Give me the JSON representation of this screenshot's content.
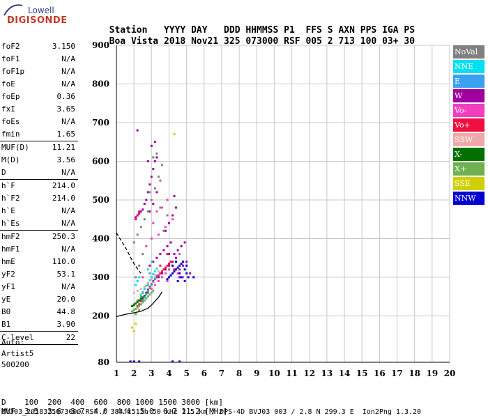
{
  "logo": {
    "line1": "Lowell",
    "line2": "DIGISONDE"
  },
  "header": {
    "labels": [
      "Station",
      "YYYY",
      "DAY",
      "DDD",
      "HHMMSS",
      "P1",
      "FFS",
      "S",
      "AXN",
      "PPS",
      "IGA",
      "PS"
    ],
    "values": [
      "Boa Vista",
      "2018",
      "Nov21",
      "325",
      "073000",
      "RSF",
      "005",
      "2",
      "713",
      "100",
      "03+",
      "30"
    ]
  },
  "parameters": [
    {
      "name": "foF2",
      "value": "3.150"
    },
    {
      "name": "foF1",
      "value": "N/A"
    },
    {
      "name": "foF1p",
      "value": "N/A"
    },
    {
      "name": "foE",
      "value": "N/A"
    },
    {
      "name": "foEp",
      "value": "0.36"
    },
    {
      "name": "fxI",
      "value": "3.65"
    },
    {
      "name": "foEs",
      "value": "N/A"
    },
    {
      "name": "fmin",
      "value": "1.65"
    },
    {
      "sep": true
    },
    {
      "name": "MUF(D)",
      "value": "11.21"
    },
    {
      "name": "M(D)",
      "value": "3.56"
    },
    {
      "name": "D",
      "value": "N/A"
    },
    {
      "sep": true
    },
    {
      "name": "h`F",
      "value": "214.0"
    },
    {
      "name": "h`F2",
      "value": "214.0"
    },
    {
      "name": "h`E",
      "value": "N/A"
    },
    {
      "name": "h`Es",
      "value": "N/A"
    },
    {
      "sep": true
    },
    {
      "name": "hmF2",
      "value": "250.3"
    },
    {
      "name": "hmF1",
      "value": "N/A"
    },
    {
      "name": "hmE",
      "value": "110.0"
    },
    {
      "name": "yF2",
      "value": "53.1"
    },
    {
      "name": "yF1",
      "value": "N/A"
    },
    {
      "name": "yE",
      "value": "20.0"
    },
    {
      "name": "B0",
      "value": "44.8"
    },
    {
      "name": "B1",
      "value": "3.90"
    },
    {
      "sep": true
    },
    {
      "name": "C-level",
      "value": "22"
    },
    {
      "sep": true
    }
  ],
  "autoscaling": {
    "line1": "Auto:",
    "line2": "Artist5",
    "line3": "500200"
  },
  "legend": [
    {
      "label": "NoVal",
      "color": "#808080"
    },
    {
      "label": "NNE",
      "color": "#00e0f0"
    },
    {
      "label": "E",
      "color": "#3aa0f0"
    },
    {
      "label": "W",
      "color": "#a000a0"
    },
    {
      "label": "Vo-",
      "color": "#f040c0"
    },
    {
      "label": "Vo+",
      "color": "#f01040"
    },
    {
      "label": "SSW",
      "color": "#f0a8a8"
    },
    {
      "label": "X-",
      "color": "#007000"
    },
    {
      "label": "X+",
      "color": "#70b050"
    },
    {
      "label": "SSE",
      "color": "#d0d000"
    },
    {
      "label": "NNW",
      "color": "#0000d0"
    }
  ],
  "distance_table": {
    "d_label": "D",
    "d_values": [
      "100",
      "200",
      "400",
      "600",
      "800",
      "1000",
      "1500",
      "3000"
    ],
    "d_unit": "[km]",
    "muf_label": "MUF",
    "muf_values": [
      "3.5",
      "3.6",
      "3.7",
      "4.0",
      "4.4",
      "5.0",
      "6.7",
      "11.2"
    ],
    "muf_unit": "[MHz]"
  },
  "footer": "BVJ03_2018325073000.RSF / 384fx512h 50 kHz 2.5 km / DPS-4D BVJ03 003 / 2.8 N 299.3 E  Ion2Png 1.3.20",
  "chart_data": {
    "type": "scatter",
    "xlim": [
      1,
      20
    ],
    "ylim": [
      80,
      900
    ],
    "xticks": [
      1,
      2,
      3,
      4,
      5,
      6,
      7,
      8,
      9,
      10,
      11,
      12,
      13,
      14,
      15,
      16,
      17,
      18,
      19,
      20
    ],
    "yticks": [
      80,
      200,
      300,
      400,
      500,
      600,
      700,
      800,
      900
    ],
    "grid": true,
    "legend_position": "right",
    "series": [
      {
        "name": "W",
        "color": "#a000a0",
        "points": [
          [
            2.1,
            455
          ],
          [
            2.2,
            460
          ],
          [
            2.3,
            465
          ],
          [
            2.4,
            470
          ],
          [
            2.5,
            475
          ],
          [
            2.6,
            490
          ],
          [
            2.7,
            500
          ],
          [
            2.8,
            520
          ],
          [
            2.9,
            540
          ],
          [
            3.0,
            560
          ],
          [
            3.1,
            580
          ],
          [
            3.2,
            600
          ],
          [
            3.3,
            610
          ],
          [
            2.8,
            600
          ],
          [
            3.0,
            640
          ],
          [
            3.2,
            650
          ],
          [
            2.9,
            470
          ],
          [
            3.1,
            490
          ],
          [
            3.3,
            520
          ],
          [
            2.9,
            330
          ],
          [
            3.1,
            340
          ],
          [
            3.3,
            350
          ],
          [
            3.5,
            360
          ],
          [
            3.7,
            370
          ],
          [
            3.9,
            380
          ],
          [
            4.1,
            390
          ],
          [
            4.3,
            360
          ],
          [
            4.5,
            370
          ],
          [
            4.7,
            380
          ],
          [
            4.9,
            390
          ],
          [
            3.4,
            300
          ],
          [
            3.6,
            310
          ],
          [
            3.8,
            320
          ],
          [
            4.0,
            330
          ],
          [
            4.2,
            340
          ],
          [
            4.4,
            350
          ],
          [
            4.6,
            320
          ],
          [
            4.8,
            330
          ],
          [
            5.0,
            340
          ],
          [
            5.2,
            310
          ],
          [
            3.8,
            420
          ],
          [
            4.0,
            440
          ],
          [
            4.2,
            460
          ],
          [
            4.4,
            480
          ],
          [
            4.3,
            510
          ],
          [
            4.0,
            360
          ],
          [
            4.6,
            300
          ],
          [
            2.2,
            680
          ]
        ]
      },
      {
        "name": "Vo-",
        "color": "#f040c0",
        "points": [
          [
            2.6,
            250
          ],
          [
            2.8,
            260
          ],
          [
            3.0,
            270
          ],
          [
            3.2,
            280
          ],
          [
            3.4,
            290
          ],
          [
            3.6,
            300
          ],
          [
            3.8,
            310
          ],
          [
            4.0,
            320
          ],
          [
            4.2,
            330
          ],
          [
            4.4,
            340
          ],
          [
            2.7,
            380
          ],
          [
            3.0,
            400
          ],
          [
            3.4,
            410
          ],
          [
            3.8,
            430
          ],
          [
            4.2,
            450
          ],
          [
            3.9,
            500
          ],
          [
            3.5,
            550
          ],
          [
            3.3,
            470
          ],
          [
            4.6,
            360
          ],
          [
            4.8,
            300
          ],
          [
            3.1,
            440
          ],
          [
            3.6,
            480
          ],
          [
            2.5,
            300
          ],
          [
            3.9,
            290
          ],
          [
            4.5,
            310
          ]
        ]
      },
      {
        "name": "Vo+",
        "color": "#f01040",
        "points": [
          [
            2.2,
            225
          ],
          [
            2.3,
            230
          ],
          [
            2.4,
            238
          ],
          [
            2.5,
            245
          ],
          [
            2.6,
            252
          ],
          [
            2.7,
            260
          ],
          [
            2.8,
            268
          ],
          [
            2.9,
            275
          ],
          [
            3.0,
            282
          ],
          [
            3.1,
            290
          ],
          [
            3.2,
            295
          ],
          [
            3.3,
            300
          ],
          [
            3.4,
            305
          ],
          [
            3.5,
            310
          ],
          [
            3.6,
            315
          ],
          [
            3.7,
            320
          ],
          [
            3.8,
            325
          ],
          [
            3.9,
            330
          ],
          [
            4.0,
            335
          ],
          [
            4.1,
            340
          ],
          [
            2.1,
            450
          ],
          [
            2.2,
            460
          ],
          [
            2.3,
            470
          ],
          [
            3.5,
            330
          ],
          [
            3.9,
            360
          ],
          [
            4.3,
            320
          ],
          [
            2.5,
            260
          ],
          [
            3.0,
            300
          ]
        ]
      },
      {
        "name": "NNW",
        "color": "#0000d0",
        "points": [
          [
            3.9,
            295
          ],
          [
            4.0,
            300
          ],
          [
            4.1,
            305
          ],
          [
            4.2,
            310
          ],
          [
            4.3,
            315
          ],
          [
            4.4,
            320
          ],
          [
            4.5,
            325
          ],
          [
            4.6,
            330
          ],
          [
            4.7,
            335
          ],
          [
            4.8,
            340
          ],
          [
            4.9,
            320
          ],
          [
            5.0,
            310
          ],
          [
            5.1,
            300
          ],
          [
            4.5,
            290
          ],
          [
            4.7,
            300
          ],
          [
            4.9,
            290
          ],
          [
            5.0,
            330
          ],
          [
            4.4,
            340
          ],
          [
            4.2,
            330
          ],
          [
            4.6,
            310
          ],
          [
            1.8,
            82
          ],
          [
            2.0,
            82
          ],
          [
            2.3,
            82
          ],
          [
            4.2,
            82
          ],
          [
            4.6,
            82
          ],
          [
            5.4,
            300
          ]
        ]
      },
      {
        "name": "X+",
        "color": "#70b050",
        "points": [
          [
            1.9,
            212
          ],
          [
            2.0,
            215
          ],
          [
            2.1,
            218
          ],
          [
            2.2,
            222
          ],
          [
            2.3,
            226
          ],
          [
            2.4,
            230
          ],
          [
            2.5,
            235
          ],
          [
            2.6,
            240
          ],
          [
            2.7,
            245
          ],
          [
            2.8,
            250
          ],
          [
            2.9,
            255
          ],
          [
            3.0,
            260
          ],
          [
            3.1,
            265
          ],
          [
            2.2,
            240
          ],
          [
            2.4,
            250
          ],
          [
            2.0,
            230
          ],
          [
            2.6,
            270
          ],
          [
            2.8,
            280
          ],
          [
            2.1,
            205
          ],
          [
            2.3,
            215
          ]
        ]
      },
      {
        "name": "X-",
        "color": "#007000",
        "points": [
          [
            1.9,
            225
          ],
          [
            2.0,
            228
          ],
          [
            2.1,
            232
          ],
          [
            2.2,
            236
          ],
          [
            2.3,
            240
          ],
          [
            2.4,
            244
          ],
          [
            2.5,
            248
          ],
          [
            2.6,
            252
          ],
          [
            2.7,
            258
          ],
          [
            2.8,
            262
          ]
        ]
      },
      {
        "name": "NNE",
        "color": "#00e0f0",
        "points": [
          [
            2.4,
            255
          ],
          [
            2.5,
            262
          ],
          [
            2.6,
            270
          ],
          [
            2.7,
            278
          ],
          [
            2.8,
            285
          ],
          [
            2.9,
            292
          ],
          [
            3.0,
            300
          ],
          [
            3.1,
            308
          ],
          [
            3.2,
            315
          ],
          [
            3.3,
            322
          ],
          [
            2.1,
            280
          ],
          [
            2.2,
            290
          ],
          [
            2.3,
            300
          ],
          [
            2.8,
            320
          ],
          [
            3.0,
            340
          ]
        ]
      },
      {
        "name": "E",
        "color": "#3aa0f0",
        "points": [
          [
            2.5,
            240
          ],
          [
            2.6,
            248
          ],
          [
            2.7,
            256
          ],
          [
            2.8,
            264
          ],
          [
            2.9,
            272
          ],
          [
            3.0,
            280
          ],
          [
            3.1,
            288
          ],
          [
            3.2,
            296
          ],
          [
            3.3,
            304
          ],
          [
            2.9,
            310
          ]
        ]
      },
      {
        "name": "SSW",
        "color": "#f0a8a8",
        "points": [
          [
            2.0,
            260
          ],
          [
            2.2,
            265
          ],
          [
            2.4,
            270
          ],
          [
            2.6,
            275
          ],
          [
            2.8,
            285
          ],
          [
            3.0,
            295
          ],
          [
            3.2,
            305
          ],
          [
            3.4,
            315
          ]
        ]
      },
      {
        "name": "SSE",
        "color": "#d0d000",
        "points": [
          [
            1.9,
            170
          ],
          [
            2.0,
            160
          ],
          [
            4.3,
            670
          ],
          [
            2.1,
            180
          ]
        ]
      },
      {
        "name": "NoVal",
        "color": "#808080",
        "points": [
          [
            2.0,
            390
          ],
          [
            2.2,
            410
          ],
          [
            2.4,
            430
          ],
          [
            2.6,
            450
          ],
          [
            2.8,
            470
          ],
          [
            3.0,
            500
          ],
          [
            3.2,
            530
          ],
          [
            3.4,
            560
          ],
          [
            3.6,
            590
          ],
          [
            3.1,
            610
          ],
          [
            3.3,
            620
          ],
          [
            2.9,
            520
          ],
          [
            2.5,
            360
          ],
          [
            2.3,
            330
          ],
          [
            2.1,
            300
          ],
          [
            3.5,
            480
          ],
          [
            3.7,
            420
          ],
          [
            3.9,
            460
          ]
        ]
      }
    ],
    "profile_line": [
      [
        1.0,
        415
      ],
      [
        1.2,
        400
      ],
      [
        1.4,
        385
      ],
      [
        1.6,
        370
      ],
      [
        1.8,
        352
      ],
      [
        2.0,
        335
      ],
      [
        2.2,
        322
      ],
      [
        2.4,
        310
      ]
    ],
    "trace_line": [
      [
        1.0,
        198
      ],
      [
        1.5,
        204
      ],
      [
        2.0,
        208
      ],
      [
        2.4,
        212
      ],
      [
        2.8,
        220
      ],
      [
        3.0,
        228
      ],
      [
        3.2,
        238
      ],
      [
        3.4,
        248
      ],
      [
        3.6,
        262
      ]
    ]
  }
}
